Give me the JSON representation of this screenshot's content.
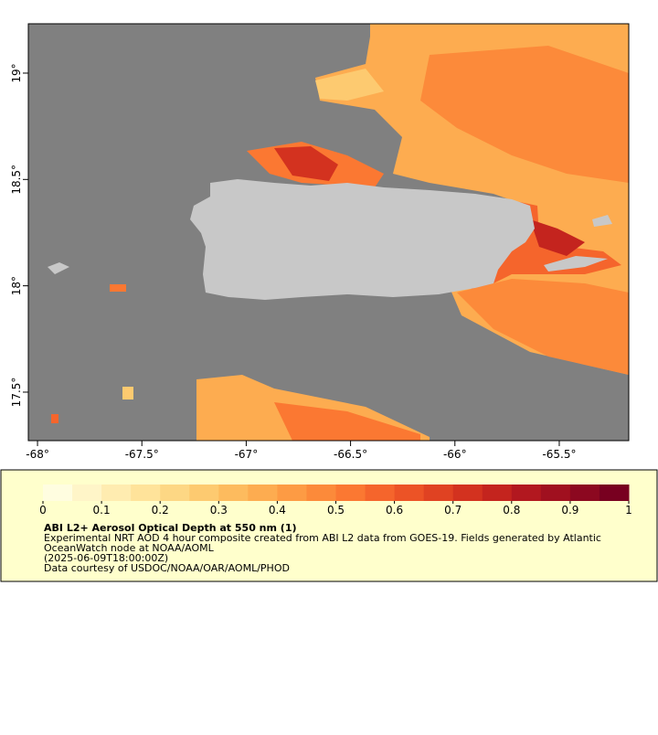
{
  "chart_data": {
    "type": "map",
    "xlim": [
      -68.044,
      -65.167
    ],
    "ylim": [
      17.272,
      19.232
    ],
    "xticks": [
      {
        "value": -68,
        "label": "-68°"
      },
      {
        "value": -67.5,
        "label": "-67.5°"
      },
      {
        "value": -67,
        "label": "-67°"
      },
      {
        "value": -66.5,
        "label": "-66.5°"
      },
      {
        "value": -66,
        "label": "-66°"
      },
      {
        "value": -65.5,
        "label": "-65.5°"
      }
    ],
    "yticks": [
      {
        "value": 17.5,
        "label": "17.5°"
      },
      {
        "value": 18,
        "label": "18°"
      },
      {
        "value": 18.5,
        "label": "18.5°"
      },
      {
        "value": 19,
        "label": "19°"
      }
    ],
    "colorbar": {
      "lim": [
        0,
        1
      ],
      "ticks": [
        0,
        0.1,
        0.2,
        0.3,
        0.4,
        0.5,
        0.6,
        0.7,
        0.8,
        0.9,
        1
      ],
      "colors": [
        "#fffde0",
        "#fff5c8",
        "#ffecb0",
        "#ffe39a",
        "#fdd784",
        "#fdca70",
        "#fdbb5e",
        "#fdac50",
        "#fd9b44",
        "#fc8a3a",
        "#fb7832",
        "#f5652c",
        "#ec5326",
        "#e04222",
        "#d3321f",
        "#c4241e",
        "#b2181f",
        "#a0101f",
        "#8c0820",
        "#780020"
      ]
    },
    "title": "ABI L2+ Aerosol Optical Depth at 550 nm (1)",
    "notes": [
      "Experimental NRT AOD 4 hour composite created from ABI L2 data from GOES-19. Fields generated by Atlantic",
      "OceanWatch node at NOAA/AOML",
      "(2025-06-09T18:00:00Z)",
      "Data courtesy of USDOC/NOAA/OAR/AOML/PHOD"
    ]
  }
}
